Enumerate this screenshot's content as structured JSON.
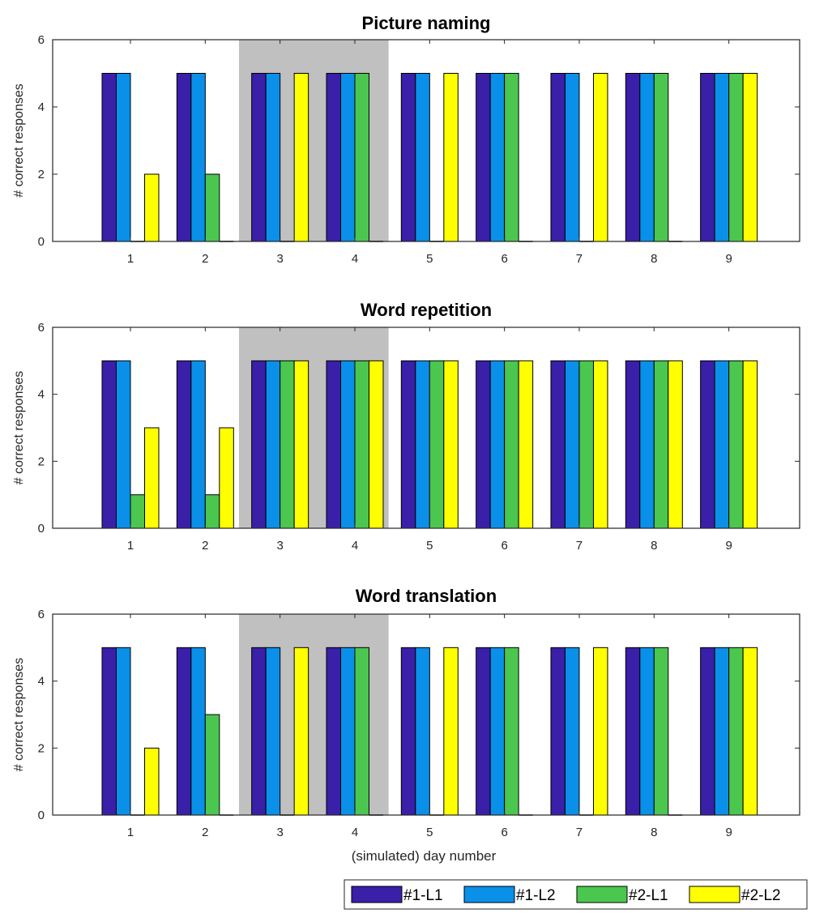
{
  "figure": {
    "xlabel": "(simulated) day number",
    "ylabel": "# correct responses"
  },
  "legend": {
    "placement": "bottom-right",
    "entries": [
      "#1-L1",
      "#1-L2",
      "#2-L1",
      "#2-L2"
    ]
  },
  "series_colors": [
    "#3a1fa8",
    "#0a90e8",
    "#4bc64f",
    "#ffff00"
  ],
  "highlight_color": "#c0c0c0",
  "chart_data": [
    {
      "type": "bar",
      "title": "Picture naming",
      "categories": [
        "1",
        "2",
        "3",
        "4",
        "5",
        "6",
        "7",
        "8",
        "9"
      ],
      "ylim": [
        0,
        6
      ],
      "yticks": [
        0,
        2,
        4,
        6
      ],
      "ylabel": "# correct responses",
      "highlight_categories": [
        "3",
        "4"
      ],
      "series": [
        {
          "name": "#1-L1",
          "values": [
            5,
            5,
            5,
            5,
            5,
            5,
            5,
            5,
            5
          ]
        },
        {
          "name": "#1-L2",
          "values": [
            5,
            5,
            5,
            5,
            5,
            5,
            5,
            5,
            5
          ]
        },
        {
          "name": "#2-L1",
          "values": [
            0,
            2,
            0,
            5,
            0,
            5,
            0,
            5,
            5
          ]
        },
        {
          "name": "#2-L2",
          "values": [
            2,
            0,
            5,
            0,
            5,
            0,
            5,
            0,
            5
          ]
        }
      ]
    },
    {
      "type": "bar",
      "title": "Word repetition",
      "categories": [
        "1",
        "2",
        "3",
        "4",
        "5",
        "6",
        "7",
        "8",
        "9"
      ],
      "ylim": [
        0,
        6
      ],
      "yticks": [
        0,
        2,
        4,
        6
      ],
      "ylabel": "# correct responses",
      "highlight_categories": [
        "3",
        "4"
      ],
      "series": [
        {
          "name": "#1-L1",
          "values": [
            5,
            5,
            5,
            5,
            5,
            5,
            5,
            5,
            5
          ]
        },
        {
          "name": "#1-L2",
          "values": [
            5,
            5,
            5,
            5,
            5,
            5,
            5,
            5,
            5
          ]
        },
        {
          "name": "#2-L1",
          "values": [
            1,
            1,
            5,
            5,
            5,
            5,
            5,
            5,
            5
          ]
        },
        {
          "name": "#2-L2",
          "values": [
            3,
            3,
            5,
            5,
            5,
            5,
            5,
            5,
            5
          ]
        }
      ]
    },
    {
      "type": "bar",
      "title": "Word translation",
      "categories": [
        "1",
        "2",
        "3",
        "4",
        "5",
        "6",
        "7",
        "8",
        "9"
      ],
      "ylim": [
        0,
        6
      ],
      "yticks": [
        0,
        2,
        4,
        6
      ],
      "ylabel": "# correct responses",
      "xlabel": "(simulated) day number",
      "highlight_categories": [
        "3",
        "4"
      ],
      "series": [
        {
          "name": "#1-L1",
          "values": [
            5,
            5,
            5,
            5,
            5,
            5,
            5,
            5,
            5
          ]
        },
        {
          "name": "#1-L2",
          "values": [
            5,
            5,
            5,
            5,
            5,
            5,
            5,
            5,
            5
          ]
        },
        {
          "name": "#2-L1",
          "values": [
            0,
            3,
            0,
            5,
            0,
            5,
            0,
            5,
            5
          ]
        },
        {
          "name": "#2-L2",
          "values": [
            2,
            0,
            5,
            0,
            5,
            0,
            5,
            0,
            5
          ]
        }
      ]
    }
  ]
}
